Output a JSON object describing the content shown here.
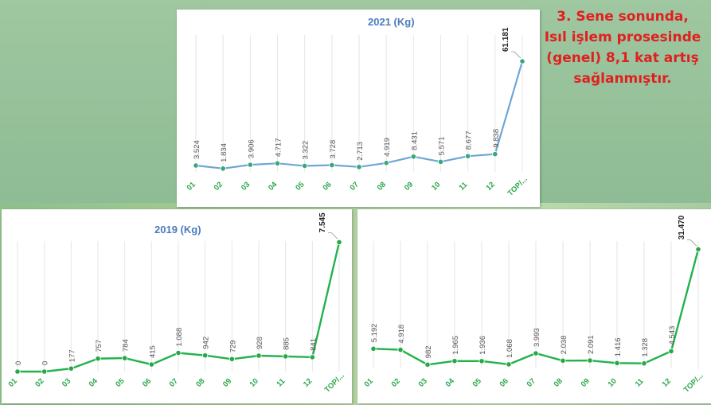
{
  "headline": {
    "lines": [
      "3. Sene sonunda,",
      "Isıl işlem prosesinde",
      "(genel) 8,1 kat artış",
      "sağlanmıştır."
    ]
  },
  "colors": {
    "line_2021": "#6fa6d6",
    "line_green": "#22b24c",
    "tick_green": "#2aa84a",
    "headline": "#e02020",
    "title": "#4a7cc0"
  },
  "chart_data": [
    {
      "type": "line",
      "title": "2021 (Kg)",
      "categories": [
        "01",
        "02",
        "03",
        "04",
        "05",
        "06",
        "07",
        "08",
        "09",
        "10",
        "11",
        "12",
        "TOP/..."
      ],
      "values": [
        3524,
        1834,
        3906,
        4717,
        3322,
        3728,
        2713,
        4919,
        8431,
        5571,
        8677,
        9838,
        61181
      ],
      "labels": [
        "3.524",
        "1.834",
        "3.906",
        "4.717",
        "3.322",
        "3.728",
        "2.713",
        "4.919",
        "8.431",
        "5.571",
        "8.677",
        "9.838",
        "61.181"
      ],
      "ylim": [
        0,
        70000
      ],
      "grid": true
    },
    {
      "type": "line",
      "title": "2019 (Kg)",
      "categories": [
        "01",
        "02",
        "03",
        "04",
        "05",
        "06",
        "07",
        "08",
        "09",
        "10",
        "11",
        "12",
        "TOP/..."
      ],
      "values": [
        0,
        0,
        177,
        757,
        784,
        415,
        1088,
        942,
        729,
        928,
        885,
        841,
        7545
      ],
      "labels": [
        "0",
        "0",
        "177",
        "757",
        "784",
        "415",
        "1.088",
        "942",
        "729",
        "928",
        "885",
        "841",
        "7.545"
      ],
      "ylim": [
        0,
        9000
      ],
      "grid": true
    },
    {
      "type": "line",
      "title": "",
      "categories": [
        "01",
        "02",
        "03",
        "04",
        "05",
        "06",
        "07",
        "08",
        "09",
        "10",
        "11",
        "12",
        "TOP/..."
      ],
      "values": [
        5192,
        4918,
        982,
        1965,
        1936,
        1068,
        3993,
        2038,
        2091,
        1416,
        1328,
        4543,
        31470
      ],
      "labels": [
        "5.192",
        "4.918",
        "982",
        "1.965",
        "1.936",
        "1.068",
        "3.993",
        "2.038",
        "2.091",
        "1.416",
        "1.328",
        "4.543",
        "31.470"
      ],
      "ylim": [
        0,
        37000
      ],
      "grid": true
    }
  ]
}
